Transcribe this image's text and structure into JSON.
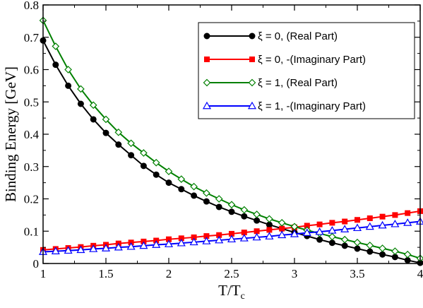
{
  "chart_data": {
    "type": "line",
    "title": "",
    "xlabel_main": "T/T",
    "xlabel_sub": "c",
    "ylabel": "Binding Energy [GeV]",
    "xlim": [
      1,
      4
    ],
    "ylim": [
      0,
      0.8
    ],
    "x_ticks": [
      1,
      1.5,
      2,
      2.5,
      3,
      3.5,
      4
    ],
    "x_tick_labels": [
      "1",
      "1.5",
      "2",
      "2.5",
      "3",
      "3.5",
      "4"
    ],
    "y_ticks": [
      0,
      0.1,
      0.2,
      0.3,
      0.4,
      0.5,
      0.6,
      0.7,
      0.8
    ],
    "y_tick_labels": [
      "0",
      "0.1",
      "0.2",
      "0.3",
      "0.4",
      "0.5",
      "0.6",
      "0.7",
      "0.8"
    ],
    "grid": false,
    "legend_position": "top-right",
    "x": [
      1.0,
      1.1,
      1.2,
      1.3,
      1.4,
      1.5,
      1.6,
      1.7,
      1.8,
      1.9,
      2.0,
      2.1,
      2.2,
      2.3,
      2.4,
      2.5,
      2.6,
      2.7,
      2.8,
      2.9,
      3.0,
      3.1,
      3.2,
      3.3,
      3.4,
      3.5,
      3.6,
      3.7,
      3.8,
      3.9,
      4.0
    ],
    "series": [
      {
        "name": "ξ = 0, (Real Part)",
        "color": "#000000",
        "marker": "filled-circle",
        "values": [
          0.69,
          0.615,
          0.55,
          0.494,
          0.446,
          0.404,
          0.368,
          0.335,
          0.302,
          0.275,
          0.25,
          0.23,
          0.21,
          0.192,
          0.175,
          0.16,
          0.146,
          0.133,
          0.12,
          0.108,
          0.096,
          0.085,
          0.074,
          0.064,
          0.055,
          0.046,
          0.037,
          0.028,
          0.02,
          0.01,
          0.002
        ]
      },
      {
        "name": "ξ = 0, -(Imaginary Part)",
        "color": "#ff0000",
        "marker": "filled-square",
        "values": [
          0.042,
          0.045,
          0.048,
          0.051,
          0.055,
          0.058,
          0.062,
          0.065,
          0.068,
          0.071,
          0.075,
          0.078,
          0.081,
          0.085,
          0.088,
          0.092,
          0.096,
          0.1,
          0.104,
          0.108,
          0.112,
          0.117,
          0.121,
          0.126,
          0.13,
          0.135,
          0.14,
          0.145,
          0.15,
          0.156,
          0.162
        ]
      },
      {
        "name": "ξ = 1, (Real Part)",
        "color": "#008000",
        "marker": "open-diamond",
        "values": [
          0.752,
          0.672,
          0.6,
          0.54,
          0.49,
          0.446,
          0.406,
          0.372,
          0.342,
          0.312,
          0.285,
          0.261,
          0.238,
          0.218,
          0.2,
          0.182,
          0.166,
          0.152,
          0.138,
          0.126,
          0.114,
          0.103,
          0.093,
          0.083,
          0.074,
          0.065,
          0.056,
          0.047,
          0.038,
          0.028,
          0.016
        ]
      },
      {
        "name": "ξ = 1, -(Imaginary Part)",
        "color": "#0000ff",
        "marker": "open-triangle",
        "values": [
          0.036,
          0.038,
          0.04,
          0.042,
          0.045,
          0.047,
          0.05,
          0.052,
          0.055,
          0.058,
          0.06,
          0.063,
          0.066,
          0.069,
          0.072,
          0.075,
          0.078,
          0.081,
          0.084,
          0.088,
          0.091,
          0.095,
          0.098,
          0.102,
          0.106,
          0.11,
          0.114,
          0.118,
          0.122,
          0.126,
          0.13
        ]
      }
    ]
  }
}
